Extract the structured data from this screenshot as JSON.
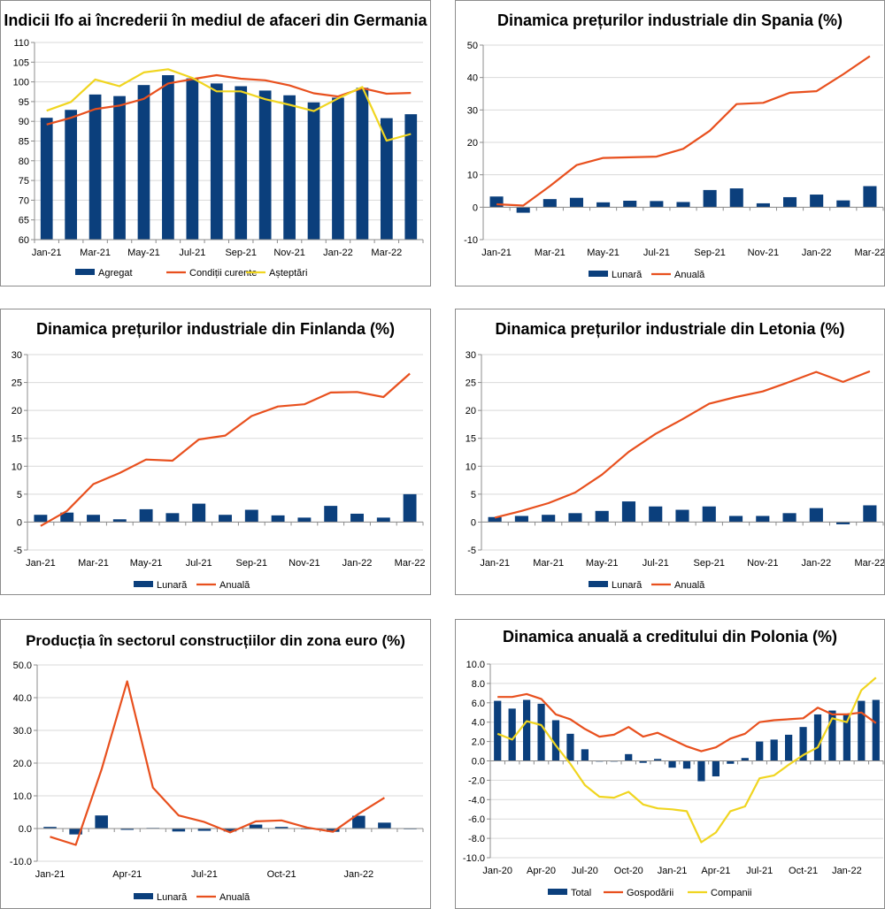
{
  "chart_data": [
    {
      "id": "germany",
      "type": "bar+line",
      "title": "Indicii Ifo ai încrederii în mediul de afaceri din Germania",
      "categories": [
        "Jan-21",
        "Feb-21",
        "Mar-21",
        "Apr-21",
        "May-21",
        "Jun-21",
        "Jul-21",
        "Aug-21",
        "Sep-21",
        "Oct-21",
        "Nov-21",
        "Dec-21",
        "Jan-22",
        "Feb-22",
        "Mar-22",
        "Apr-22"
      ],
      "x_tick_labels": [
        "Jan-21",
        "Mar-21",
        "May-21",
        "Jul-21",
        "Sep-21",
        "Nov-21",
        "Jan-22",
        "Mar-22"
      ],
      "ylim": [
        60,
        110
      ],
      "y_ticks": [
        "60",
        "65",
        "70",
        "75",
        "80",
        "85",
        "90",
        "95",
        "100",
        "105",
        "110"
      ],
      "series": [
        {
          "name": "Agregat",
          "kind": "bar",
          "color": "#0b3f7c",
          "values": [
            90.9,
            92.9,
            96.8,
            96.4,
            99.2,
            101.7,
            100.9,
            99.6,
            98.9,
            97.8,
            96.6,
            94.8,
            96.0,
            98.5,
            90.8,
            91.8
          ]
        },
        {
          "name": "Condiții curente",
          "kind": "line",
          "color": "#e8501e",
          "values": [
            89.2,
            90.9,
            93.1,
            94.0,
            95.7,
            99.6,
            100.7,
            101.7,
            100.8,
            100.4,
            99.1,
            97.1,
            96.3,
            98.4,
            97.0,
            97.2
          ]
        },
        {
          "name": "Așteptări",
          "kind": "line",
          "color": "#f0d520",
          "values": [
            92.7,
            94.9,
            100.6,
            98.9,
            102.4,
            103.2,
            101.0,
            97.6,
            97.6,
            95.6,
            94.2,
            92.6,
            95.8,
            98.7,
            85.1,
            86.8
          ]
        }
      ]
    },
    {
      "id": "spain",
      "type": "bar+line",
      "title": "Dinamica prețurilor industriale din Spania (%)",
      "categories": [
        "Jan-21",
        "Feb-21",
        "Mar-21",
        "Apr-21",
        "May-21",
        "Jun-21",
        "Jul-21",
        "Aug-21",
        "Sep-21",
        "Oct-21",
        "Nov-21",
        "Dec-21",
        "Jan-22",
        "Feb-22",
        "Mar-22"
      ],
      "x_tick_labels": [
        "Jan-21",
        "Mar-21",
        "May-21",
        "Jul-21",
        "Sep-21",
        "Nov-21",
        "Jan-22",
        "Mar-22"
      ],
      "ylim": [
        -10,
        50
      ],
      "y_ticks": [
        "-10",
        "0",
        "10",
        "20",
        "30",
        "40",
        "50"
      ],
      "series": [
        {
          "name": "Lunară",
          "kind": "bar",
          "color": "#0b3f7c",
          "values": [
            3.3,
            -1.7,
            2.5,
            2.9,
            1.5,
            2.0,
            1.9,
            1.6,
            5.3,
            5.8,
            1.2,
            3.1,
            3.9,
            2.1,
            6.5
          ]
        },
        {
          "name": "Anuală",
          "kind": "line",
          "color": "#e8501e",
          "values": [
            0.9,
            0.5,
            6.5,
            13.0,
            15.2,
            15.4,
            15.6,
            18.0,
            23.6,
            31.8,
            32.2,
            35.3,
            35.8,
            41.0,
            46.6
          ]
        }
      ]
    },
    {
      "id": "finland",
      "type": "bar+line",
      "title": "Dinamica prețurilor industriale din Finlanda (%)",
      "categories": [
        "Jan-21",
        "Feb-21",
        "Mar-21",
        "Apr-21",
        "May-21",
        "Jun-21",
        "Jul-21",
        "Aug-21",
        "Sep-21",
        "Oct-21",
        "Nov-21",
        "Dec-21",
        "Jan-22",
        "Feb-22",
        "Mar-22"
      ],
      "x_tick_labels": [
        "Jan-21",
        "Mar-21",
        "May-21",
        "Jul-21",
        "Sep-21",
        "Nov-21",
        "Jan-22",
        "Mar-22"
      ],
      "ylim": [
        -5,
        30
      ],
      "y_ticks": [
        "-5",
        "0",
        "5",
        "10",
        "15",
        "20",
        "25",
        "30"
      ],
      "series": [
        {
          "name": "Lunară",
          "kind": "bar",
          "color": "#0b3f7c",
          "values": [
            1.3,
            1.7,
            1.3,
            0.5,
            2.3,
            1.6,
            3.3,
            1.3,
            2.2,
            1.2,
            0.8,
            2.9,
            1.5,
            0.8,
            5.0
          ]
        },
        {
          "name": "Anuală",
          "kind": "line",
          "color": "#e8501e",
          "values": [
            -0.7,
            2.0,
            6.8,
            8.8,
            11.2,
            11.0,
            14.8,
            15.5,
            19.0,
            20.7,
            21.1,
            23.2,
            23.3,
            22.4,
            26.6
          ]
        }
      ]
    },
    {
      "id": "latvia",
      "type": "bar+line",
      "title": "Dinamica prețurilor industriale din Letonia (%)",
      "categories": [
        "Jan-21",
        "Feb-21",
        "Mar-21",
        "Apr-21",
        "May-21",
        "Jun-21",
        "Jul-21",
        "Aug-21",
        "Sep-21",
        "Oct-21",
        "Nov-21",
        "Dec-21",
        "Jan-22",
        "Feb-22",
        "Mar-22"
      ],
      "x_tick_labels": [
        "Jan-21",
        "Mar-21",
        "May-21",
        "Jul-21",
        "Sep-21",
        "Nov-21",
        "Jan-22",
        "Mar-22"
      ],
      "ylim": [
        -5,
        30
      ],
      "y_ticks": [
        "-5",
        "0",
        "5",
        "10",
        "15",
        "20",
        "25",
        "30"
      ],
      "series": [
        {
          "name": "Lunară",
          "kind": "bar",
          "color": "#0b3f7c",
          "values": [
            0.9,
            1.1,
            1.3,
            1.6,
            2.0,
            3.7,
            2.8,
            2.2,
            2.8,
            1.1,
            1.1,
            1.6,
            2.5,
            -0.4,
            3.0
          ]
        },
        {
          "name": "Anuală",
          "kind": "line",
          "color": "#e8501e",
          "values": [
            0.8,
            2.0,
            3.4,
            5.3,
            8.5,
            12.6,
            15.8,
            18.4,
            21.2,
            22.4,
            23.4,
            25.1,
            26.9,
            25.1,
            27.0
          ]
        }
      ]
    },
    {
      "id": "eurozone_construction",
      "type": "bar+line",
      "title": "Producția în sectorul construcțiilor din zona euro (%)",
      "categories": [
        "Jan-21",
        "Feb-21",
        "Mar-21",
        "Apr-21",
        "May-21",
        "Jun-21",
        "Jul-21",
        "Aug-21",
        "Sep-21",
        "Oct-21",
        "Nov-21",
        "Dec-21",
        "Jan-22",
        "Feb-22",
        "Mar-22"
      ],
      "x_tick_labels": [
        "Jan-21",
        "Apr-21",
        "Jul-21",
        "Oct-21",
        "Jan-22"
      ],
      "x_tick_index": [
        0,
        3,
        6,
        9,
        12
      ],
      "ylim": [
        -10,
        50
      ],
      "y_ticks": [
        "-10.0",
        "0.0",
        "10.0",
        "20.0",
        "30.0",
        "40.0",
        "50.0"
      ],
      "series": [
        {
          "name": "Lunară",
          "kind": "bar",
          "color": "#0b3f7c",
          "values": [
            0.5,
            -1.8,
            4.0,
            -0.4,
            0.2,
            -0.9,
            -0.7,
            -0.9,
            1.2,
            0.5,
            0.0,
            -1.0,
            3.9,
            1.8,
            0.0
          ]
        },
        {
          "name": "Anuală",
          "kind": "line",
          "color": "#e8501e",
          "values": [
            -2.5,
            -5.0,
            18.0,
            45.0,
            12.5,
            4.0,
            2.0,
            -1.2,
            2.2,
            2.5,
            0.3,
            -1.0,
            4.5,
            9.4,
            null
          ]
        }
      ]
    },
    {
      "id": "poland_credit",
      "type": "bar+line",
      "title": "Dinamica anuală a creditului din Polonia (%)",
      "categories": [
        "Jan-20",
        "Feb-20",
        "Mar-20",
        "Apr-20",
        "May-20",
        "Jun-20",
        "Jul-20",
        "Aug-20",
        "Sep-20",
        "Oct-20",
        "Nov-20",
        "Dec-20",
        "Jan-21",
        "Feb-21",
        "Mar-21",
        "Apr-21",
        "May-21",
        "Jun-21",
        "Jul-21",
        "Aug-21",
        "Sep-21",
        "Oct-21",
        "Nov-21",
        "Dec-21",
        "Jan-22",
        "Feb-22",
        "Mar-22"
      ],
      "x_tick_labels": [
        "Jan-20",
        "Apr-20",
        "Jul-20",
        "Oct-20",
        "Jan-21",
        "Apr-21",
        "Jul-21",
        "Oct-21",
        "Jan-22"
      ],
      "x_tick_index": [
        0,
        3,
        6,
        9,
        12,
        15,
        18,
        21,
        24
      ],
      "ylim": [
        -10,
        10
      ],
      "y_ticks": [
        "-10.0",
        "-8.0",
        "-6.0",
        "-4.0",
        "-2.0",
        "0.0",
        "2.0",
        "4.0",
        "6.0",
        "8.0",
        "10.0"
      ],
      "series": [
        {
          "name": "Total",
          "kind": "bar",
          "color": "#0b3f7c",
          "values": [
            6.2,
            5.4,
            6.3,
            5.9,
            4.2,
            2.8,
            1.2,
            0.0,
            0.0,
            0.7,
            -0.2,
            0.2,
            -0.7,
            -0.8,
            -2.1,
            -1.6,
            -0.3,
            0.3,
            2.0,
            2.2,
            2.7,
            3.5,
            4.8,
            5.2,
            4.8,
            6.2,
            6.3
          ]
        },
        {
          "name": "Gospodării",
          "kind": "line",
          "color": "#e8501e",
          "values": [
            6.6,
            6.6,
            6.9,
            6.4,
            4.8,
            4.3,
            3.3,
            2.5,
            2.7,
            3.5,
            2.5,
            2.9,
            2.2,
            1.5,
            1.0,
            1.4,
            2.3,
            2.8,
            4.0,
            4.2,
            4.3,
            4.4,
            5.5,
            4.8,
            4.8,
            5.0,
            3.9
          ]
        },
        {
          "name": "Companii",
          "kind": "line",
          "color": "#f0d520",
          "values": [
            2.8,
            2.2,
            4.1,
            3.7,
            1.6,
            -0.3,
            -2.5,
            -3.7,
            -3.8,
            -3.2,
            -4.5,
            -4.9,
            -5.0,
            -5.2,
            -8.4,
            -7.4,
            -5.2,
            -4.7,
            -1.8,
            -1.5,
            -0.4,
            0.6,
            1.4,
            4.4,
            4.0,
            7.3,
            8.6
          ]
        }
      ]
    }
  ]
}
